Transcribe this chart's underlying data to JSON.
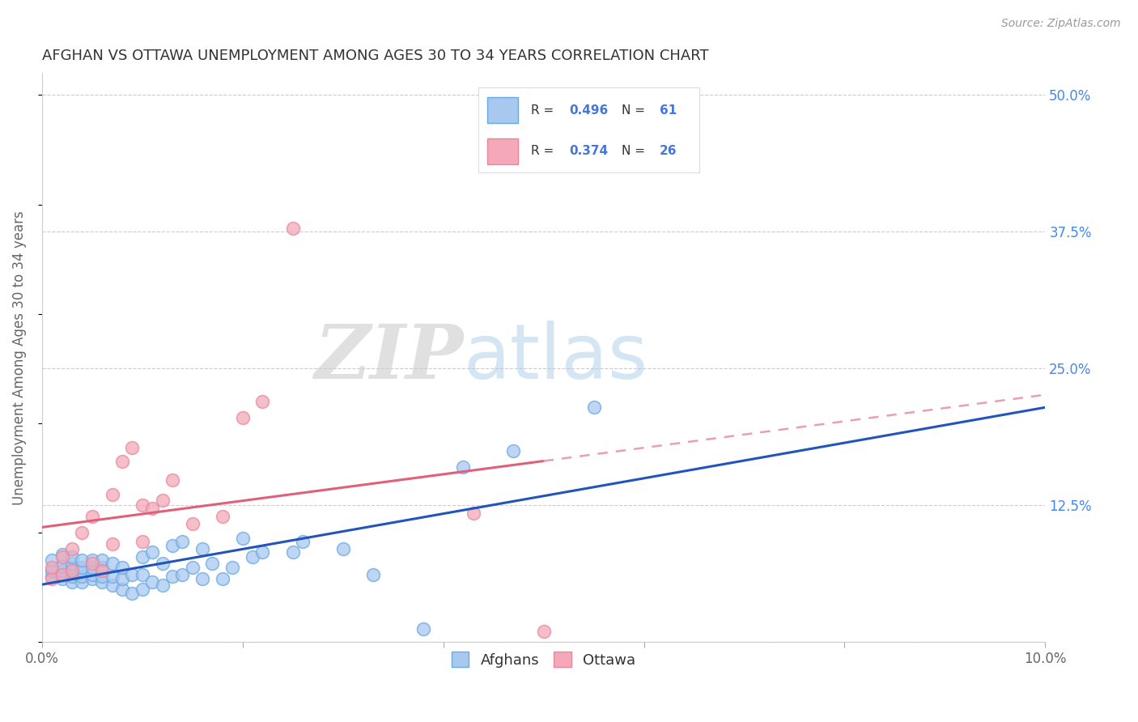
{
  "title": "AFGHAN VS OTTAWA UNEMPLOYMENT AMONG AGES 30 TO 34 YEARS CORRELATION CHART",
  "source": "Source: ZipAtlas.com",
  "ylabel": "Unemployment Among Ages 30 to 34 years",
  "xlim": [
    0.0,
    0.1
  ],
  "ylim": [
    0.0,
    0.52
  ],
  "xticks": [
    0.0,
    0.02,
    0.04,
    0.06,
    0.08,
    0.1
  ],
  "xticklabels": [
    "0.0%",
    "",
    "",
    "",
    "",
    "10.0%"
  ],
  "yticks_right": [
    0.0,
    0.125,
    0.25,
    0.375,
    0.5
  ],
  "ytick_labels_right": [
    "",
    "12.5%",
    "25.0%",
    "37.5%",
    "50.0%"
  ],
  "background_color": "#ffffff",
  "grid_color": "#cccccc",
  "watermark_zip": "ZIP",
  "watermark_atlas": "atlas",
  "afghans_color": "#a8c8f0",
  "afghans_edge_color": "#6aaae0",
  "ottawa_color": "#f4a8b8",
  "ottawa_edge_color": "#e888a0",
  "afghans_line_color": "#2255bb",
  "ottawa_line_color": "#e0607a",
  "ottawa_dash_color": "#e8a0b0",
  "legend_r_color": "#4477dd",
  "legend_n_color": "#44aa44",
  "afghans_x": [
    0.001,
    0.001,
    0.001,
    0.002,
    0.002,
    0.002,
    0.002,
    0.003,
    0.003,
    0.003,
    0.003,
    0.003,
    0.004,
    0.004,
    0.004,
    0.004,
    0.004,
    0.005,
    0.005,
    0.005,
    0.005,
    0.006,
    0.006,
    0.006,
    0.006,
    0.007,
    0.007,
    0.007,
    0.008,
    0.008,
    0.008,
    0.009,
    0.009,
    0.01,
    0.01,
    0.01,
    0.011,
    0.011,
    0.012,
    0.012,
    0.013,
    0.013,
    0.014,
    0.014,
    0.015,
    0.016,
    0.016,
    0.017,
    0.018,
    0.019,
    0.02,
    0.021,
    0.022,
    0.025,
    0.026,
    0.03,
    0.033,
    0.038,
    0.042,
    0.047,
    0.055
  ],
  "afghans_y": [
    0.06,
    0.065,
    0.075,
    0.058,
    0.065,
    0.07,
    0.08,
    0.055,
    0.06,
    0.068,
    0.072,
    0.078,
    0.055,
    0.06,
    0.065,
    0.068,
    0.075,
    0.058,
    0.062,
    0.068,
    0.075,
    0.055,
    0.06,
    0.068,
    0.075,
    0.052,
    0.06,
    0.072,
    0.048,
    0.058,
    0.068,
    0.045,
    0.062,
    0.048,
    0.062,
    0.078,
    0.055,
    0.082,
    0.052,
    0.072,
    0.06,
    0.088,
    0.062,
    0.092,
    0.068,
    0.058,
    0.085,
    0.072,
    0.058,
    0.068,
    0.095,
    0.078,
    0.082,
    0.082,
    0.092,
    0.085,
    0.062,
    0.012,
    0.16,
    0.175,
    0.215
  ],
  "ottawa_x": [
    0.001,
    0.001,
    0.002,
    0.002,
    0.003,
    0.003,
    0.004,
    0.005,
    0.005,
    0.006,
    0.007,
    0.007,
    0.008,
    0.009,
    0.01,
    0.01,
    0.011,
    0.012,
    0.013,
    0.015,
    0.018,
    0.02,
    0.022,
    0.025,
    0.043,
    0.05
  ],
  "ottawa_y": [
    0.058,
    0.068,
    0.062,
    0.078,
    0.065,
    0.085,
    0.1,
    0.072,
    0.115,
    0.065,
    0.09,
    0.135,
    0.165,
    0.178,
    0.092,
    0.125,
    0.122,
    0.13,
    0.148,
    0.108,
    0.115,
    0.205,
    0.22,
    0.378,
    0.118,
    0.01
  ]
}
